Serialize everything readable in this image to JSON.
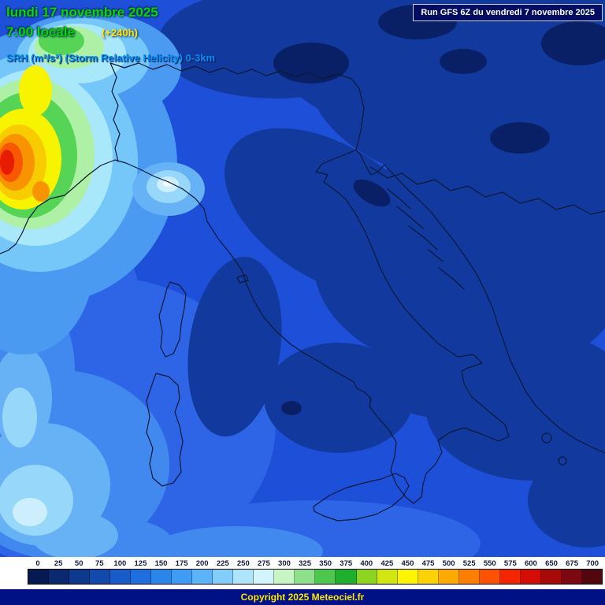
{
  "header": {
    "date_line": "lundi 17 novembre 2025",
    "time_line": "7:00 locale",
    "forecast_offset": "(+240h)",
    "parameter_line": "SRH (m²/s²) (Storm Relative Helicity) 0-3km",
    "run_info": "Run GFS 6Z du vendredi 7 novembre 2025"
  },
  "footer": {
    "copyright": "Copyright 2025 Meteociel.fr"
  },
  "legend": {
    "values": [
      "0",
      "25",
      "50",
      "75",
      "100",
      "125",
      "150",
      "175",
      "200",
      "225",
      "250",
      "275",
      "300",
      "325",
      "350",
      "375",
      "400",
      "425",
      "450",
      "475",
      "500",
      "525",
      "550",
      "575",
      "600",
      "650",
      "675",
      "700"
    ],
    "colors": [
      "#061a52",
      "#0a2a70",
      "#0e3a8e",
      "#124aac",
      "#175cc8",
      "#1f70de",
      "#2b86ec",
      "#3f9cf4",
      "#5cb4f8",
      "#82cdfa",
      "#aee4fc",
      "#d4f4fc",
      "#c8f5c4",
      "#8fe08a",
      "#4cc84e",
      "#1fae2e",
      "#8cd41e",
      "#d2e612",
      "#fcf402",
      "#fcd202",
      "#fcaa02",
      "#fc7e02",
      "#fc5202",
      "#f42602",
      "#d40e06",
      "#a80a0a",
      "#7c0810",
      "#54060e"
    ]
  },
  "colors": {
    "date_text": "#00dc00",
    "offset_text": "#ffe800",
    "parameter_text": "#0090ff",
    "run_box_bg": "#000d62",
    "run_box_border": "#c8d4ff",
    "run_box_text": "#ffffff",
    "footer_bg": "#001185",
    "footer_text": "#ffe800",
    "map_base": "#1e4fd9",
    "map_dark": "#123a9e",
    "map_darkest": "#0a2066",
    "coastline": "#0a1838"
  }
}
